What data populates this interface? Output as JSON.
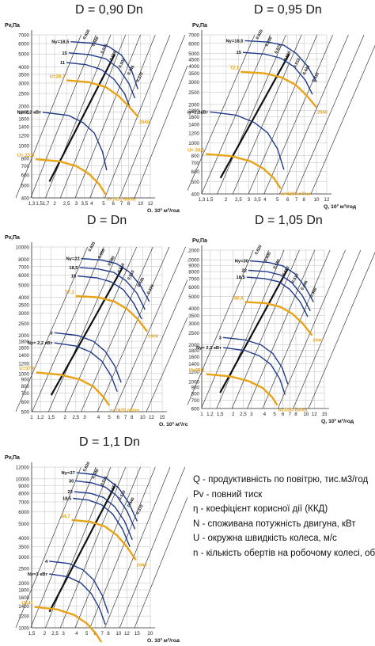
{
  "colors": {
    "operating_curve": "#e8a317",
    "blade_curve": "#1f3a8a",
    "efficiency_line": "#111111",
    "grid": "#bdbdbd"
  },
  "chart_data": [
    {
      "type": "line",
      "title": "D = 0,90 Dn",
      "ylabel": "Pv,Па",
      "xlabel": "Q, 10³ м³/год",
      "scale": "log-log",
      "xlim": [
        1.3,
        12
      ],
      "ylim": [
        400,
        7000
      ],
      "xticks": [
        "1,3",
        "1,5",
        "1,7",
        "2",
        "2,5",
        "3",
        "3,5",
        "4",
        "5",
        "6",
        "7",
        "8",
        "10",
        "12"
      ],
      "yticks": [
        "400",
        "500",
        "600",
        "700",
        "800",
        "1000",
        "1200",
        "1400",
        "1600",
        "1800",
        "2000",
        "2500",
        "3000",
        "3500",
        "4000",
        "5000",
        "6000",
        "7000"
      ],
      "efficiency_labels": [
        "0.620",
        "0.600",
        "0.575",
        "0.550",
        "0.500",
        "0.445",
        "0.370"
      ],
      "blade_power_labels": [
        "Ny=18,5",
        "15",
        "11",
        "Ny=2,2 кВт"
      ],
      "series": [
        {
          "name": "Ny=18,5",
          "x": [
            2.7,
            4.0,
            5.5,
            7.0,
            8.5,
            9.5
          ],
          "y": [
            6200,
            6050,
            5700,
            4900,
            3700,
            2700
          ]
        },
        {
          "name": "15",
          "x": [
            2.6,
            3.8,
            5.2,
            6.6,
            8.0,
            9.0
          ],
          "y": [
            5100,
            4950,
            4600,
            3900,
            3000,
            2300
          ]
        },
        {
          "name": "11",
          "x": [
            2.5,
            3.6,
            4.8,
            6.1,
            7.4,
            8.3
          ],
          "y": [
            4300,
            4150,
            3800,
            3200,
            2500,
            1900
          ]
        },
        {
          "name": "Ny=2,2 кВт",
          "x": [
            1.6,
            2.6,
            3.4,
            4.2,
            4.9,
            5.3
          ],
          "y": [
            1800,
            1700,
            1500,
            1250,
            900,
            650
          ]
        }
      ],
      "operating_curves": [
        {
          "label": "U=28,3",
          "end_label": "2940",
          "x": [
            2.5,
            3.8,
            5.2,
            6.6,
            8.0,
            9.6
          ],
          "y": [
            3150,
            3050,
            2800,
            2400,
            2000,
            1650
          ]
        },
        {
          "label": "U= 23,5",
          "end_label": "n=1420 об/хв",
          "x": [
            1.4,
            2.2,
            3.0,
            3.8,
            4.6,
            5.2
          ],
          "y": [
            790,
            760,
            700,
            610,
            510,
            425
          ]
        }
      ]
    },
    {
      "type": "line",
      "title": "D = 0,95 Dn",
      "ylabel": "Pv,Па",
      "xlabel": "Q, 10³ м³/год",
      "scale": "log-log",
      "xlim": [
        1.3,
        12
      ],
      "ylim": [
        400,
        7000
      ],
      "xticks": [
        "1,3",
        "1,5",
        "2",
        "2,5",
        "3",
        "3,5",
        "4",
        "5",
        "6",
        "7",
        "8",
        "10",
        "12"
      ],
      "yticks": [
        "400",
        "500",
        "600",
        "700",
        "800",
        "1000",
        "1200",
        "1400",
        "1600",
        "1800",
        "2000",
        "2500",
        "3000",
        "3500",
        "4000",
        "4500",
        "5000",
        "6000",
        "7000"
      ],
      "efficiency_labels": [
        "0.620",
        "0.600",
        "0.575",
        "0.550",
        "0.510",
        "0.445",
        "0.410"
      ],
      "blade_power_labels": [
        "Ny=18,5",
        "15",
        "Ny=2,2кВт"
      ],
      "series": [
        {
          "name": "Ny=18,5",
          "x": [
            2.8,
            4.2,
            5.6,
            7.0,
            8.5,
            10.0
          ],
          "y": [
            6300,
            6150,
            5800,
            5000,
            4000,
            3000
          ]
        },
        {
          "name": "15",
          "x": [
            2.7,
            4.0,
            5.3,
            6.7,
            8.2,
            9.3
          ],
          "y": [
            5100,
            4950,
            4600,
            3950,
            3100,
            2400
          ]
        },
        {
          "name": "Ny=2,2кВт",
          "x": [
            1.5,
            2.4,
            3.3,
            4.2,
            5.0,
            5.6
          ],
          "y": [
            1750,
            1650,
            1450,
            1200,
            900,
            620
          ]
        }
      ],
      "operating_curves": [
        {
          "label": "72,1",
          "end_label": "2940",
          "x": [
            2.6,
            4.0,
            5.4,
            6.9,
            8.4,
            10.0
          ],
          "y": [
            3600,
            3500,
            3250,
            2850,
            2350,
            1900
          ]
        },
        {
          "label": "U= 34,5",
          "end_label": "n=1388 об/хв",
          "x": [
            1.4,
            2.2,
            3.1,
            3.9,
            4.7,
            5.3
          ],
          "y": [
            820,
            790,
            720,
            630,
            530,
            440
          ]
        }
      ]
    },
    {
      "type": "line",
      "title": "D = Dn",
      "ylabel": "Pv,Па",
      "xlabel": "Q, 10³ м³/год",
      "scale": "log-log",
      "xlim": [
        1,
        15
      ],
      "ylim": [
        500,
        10000
      ],
      "xticks": [
        "1",
        "1,2",
        "1,5",
        "2",
        "2,5",
        "3",
        "4",
        "5",
        "6",
        "7",
        "8",
        "10",
        "12",
        "15"
      ],
      "yticks": [
        "500",
        "600",
        "700",
        "800",
        "900",
        "1000",
        "1200",
        "1400",
        "1600",
        "1800",
        "2000",
        "2500",
        "3000",
        "3500",
        "4000",
        "5000",
        "6000",
        "7000",
        "8000",
        "10000"
      ],
      "efficiency_labels": [
        "0.620",
        "0.600",
        "0.580",
        "0.550",
        "0.510",
        "0.445",
        "0.370"
      ],
      "blade_power_labels": [
        "Ny=22",
        "18,5",
        "15",
        "3",
        "Ny= 2,2 кВт"
      ],
      "series": [
        {
          "name": "Ny=22",
          "x": [
            2.8,
            4.2,
            5.8,
            7.5,
            9.5,
            11.5
          ],
          "y": [
            8100,
            7900,
            7400,
            6400,
            5000,
            3700
          ]
        },
        {
          "name": "18,5",
          "x": [
            2.7,
            4.0,
            5.5,
            7.1,
            8.9,
            10.5
          ],
          "y": [
            6900,
            6700,
            6300,
            5400,
            4300,
            3200
          ]
        },
        {
          "name": "15",
          "x": [
            2.6,
            3.9,
            5.2,
            6.7,
            8.3,
            9.8
          ],
          "y": [
            5900,
            5700,
            5300,
            4600,
            3600,
            2700
          ]
        },
        {
          "name": "3",
          "x": [
            1.6,
            2.6,
            3.6,
            4.6,
            5.6,
            6.4
          ],
          "y": [
            2100,
            2000,
            1800,
            1500,
            1150,
            850
          ]
        },
        {
          "name": "Ny= 2,2 кВт",
          "x": [
            1.6,
            2.5,
            3.4,
            4.3,
            5.2,
            5.9
          ],
          "y": [
            1750,
            1650,
            1480,
            1250,
            960,
            720
          ]
        }
      ],
      "operating_curves": [
        {
          "label": "77,3",
          "end_label": "2930",
          "x": [
            2.5,
            4.0,
            5.6,
            7.2,
            9.0,
            11.0
          ],
          "y": [
            4100,
            4000,
            3700,
            3250,
            2700,
            2150
          ]
        },
        {
          "label": "U=37,6",
          "end_label": "n=1425 об/хв",
          "x": [
            1.1,
            1.8,
            2.7,
            3.6,
            4.4,
            5.0
          ],
          "y": [
            1020,
            980,
            900,
            790,
            660,
            560
          ]
        }
      ]
    },
    {
      "type": "line",
      "title": "D = 1,05 Dn",
      "ylabel": "Pv,Па",
      "xlabel": "Q, 10³ м³/год",
      "scale": "log-log",
      "xlim": [
        1,
        15
      ],
      "ylim": [
        600,
        12000
      ],
      "xticks": [
        "1",
        "1,2",
        "1,5",
        "2",
        "2,5",
        "3",
        "4",
        "5",
        "6",
        "7",
        "8",
        "10",
        "12",
        "15"
      ],
      "yticks": [
        "600",
        "700",
        "800",
        "900",
        "1000",
        "1200",
        "1400",
        "1600",
        "1800",
        "2000",
        "2500",
        "3000",
        "3500",
        "4000",
        "5000",
        "6000",
        "7000",
        "8000",
        "9000",
        "10000",
        "12000"
      ],
      "efficiency_labels": [
        "0.620",
        "0.600",
        "0.580",
        "0.550",
        "0.510",
        "0.445",
        "0.400"
      ],
      "blade_power_labels": [
        "Ny=30",
        "22",
        "18,5",
        "3",
        "Ny= 2,2 кВт"
      ],
      "series": [
        {
          "name": "Ny=30",
          "x": [
            2.9,
            4.4,
            6.0,
            7.8,
            9.8,
            11.8
          ],
          "y": [
            9800,
            9500,
            8900,
            7700,
            6000,
            4500
          ]
        },
        {
          "name": "22",
          "x": [
            2.8,
            4.2,
            5.7,
            7.3,
            9.2,
            11.0
          ],
          "y": [
            8200,
            8000,
            7500,
            6500,
            5100,
            3800
          ]
        },
        {
          "name": "18,5",
          "x": [
            2.7,
            4.0,
            5.5,
            7.0,
            8.8,
            10.4
          ],
          "y": [
            7200,
            7000,
            6600,
            5700,
            4500,
            3400
          ]
        },
        {
          "name": "3",
          "x": [
            1.6,
            2.6,
            3.7,
            4.8,
            5.9,
            6.7
          ],
          "y": [
            2300,
            2200,
            2000,
            1700,
            1300,
            950
          ]
        },
        {
          "name": "Ny= 2,2 кВт",
          "x": [
            1.6,
            2.6,
            3.6,
            4.6,
            5.6,
            6.3
          ],
          "y": [
            1900,
            1800,
            1620,
            1380,
            1050,
            780
          ]
        }
      ],
      "operating_curves": [
        {
          "label": "80,6",
          "end_label": "2940",
          "x": [
            2.6,
            4.1,
            5.7,
            7.4,
            9.3,
            11.4
          ],
          "y": [
            4500,
            4400,
            4100,
            3600,
            3000,
            2400
          ]
        },
        {
          "label": "U=39,2",
          "end_label": "n=1393 об/хв",
          "x": [
            1.1,
            1.9,
            2.8,
            3.8,
            4.7,
            5.3
          ],
          "y": [
            1150,
            1100,
            1010,
            890,
            750,
            640
          ]
        }
      ]
    },
    {
      "type": "line",
      "title": "D = 1,1 Dn",
      "ylabel": "Pv,Па",
      "xlabel": "Q, 10³ м³/год",
      "scale": "log-log",
      "xlim": [
        1.5,
        20
      ],
      "ylim": [
        1000,
        12000
      ],
      "xticks": [
        "1,5",
        "2",
        "2,5",
        "3",
        "4",
        "5",
        "6",
        "7",
        "8",
        "10",
        "12",
        "15",
        "20"
      ],
      "yticks": [
        "1000",
        "1200",
        "1400",
        "1600",
        "1800",
        "2000",
        "2500",
        "3000",
        "3500",
        "4000",
        "5000",
        "6000",
        "7000",
        "8000",
        "9000",
        "10000",
        "12000"
      ],
      "efficiency_labels": [
        "0.620",
        "0.600",
        "0.575",
        "0.550",
        "0.510",
        "0.440",
        "0.370"
      ],
      "blade_power_labels": [
        "Ny=37",
        "30",
        "22",
        "18,5",
        "4",
        "Ny=3 кВт"
      ],
      "series": [
        {
          "name": "Ny=37",
          "x": [
            4.0,
            5.8,
            7.8,
            10.0,
            12.5,
            15.0
          ],
          "y": [
            11000,
            10700,
            10000,
            8700,
            6900,
            5200
          ]
        },
        {
          "name": "30",
          "x": [
            3.9,
            5.6,
            7.5,
            9.6,
            12.0,
            14.3
          ],
          "y": [
            9700,
            9400,
            8800,
            7700,
            6100,
            4600
          ]
        },
        {
          "name": "22",
          "x": [
            3.8,
            5.4,
            7.2,
            9.2,
            11.4,
            13.5
          ],
          "y": [
            8200,
            8000,
            7500,
            6500,
            5200,
            3900
          ]
        },
        {
          "name": "18,5",
          "x": [
            3.7,
            5.2,
            6.9,
            8.8,
            10.9,
            12.8
          ],
          "y": [
            7400,
            7200,
            6700,
            5800,
            4600,
            3500
          ]
        },
        {
          "name": "4",
          "x": [
            2.2,
            3.4,
            4.6,
            5.8,
            7.0,
            8.0
          ],
          "y": [
            2800,
            2700,
            2450,
            2100,
            1650,
            1250
          ]
        },
        {
          "name": "Ny=3 кВт",
          "x": [
            2.2,
            3.3,
            4.4,
            5.5,
            6.6,
            7.5
          ],
          "y": [
            2300,
            2200,
            2000,
            1700,
            1350,
            1050
          ]
        }
      ],
      "operating_curves": [
        {
          "label": "84,7",
          "end_label": "2940",
          "x": [
            3.6,
            5.4,
            7.4,
            9.6,
            12.0,
            14.6
          ],
          "y": [
            5300,
            5150,
            4800,
            4200,
            3500,
            2850
          ]
        },
        {
          "label": "U=41",
          "end_label": "n=1425 об/хв",
          "x": [
            1.6,
            2.6,
            3.8,
            5.0,
            6.2,
            7.1
          ],
          "y": [
            1380,
            1330,
            1220,
            1070,
            900,
            770
          ]
        }
      ]
    }
  ],
  "legend": [
    "Q - продуктивність по повітрю, тис.м3/год",
    "Pv - повний тиск",
    "η - коефіцієнт корисної дії (ККД)",
    "N - споживана потужність двигуна, кВт",
    "U - окружна швидкість колеса, м/с",
    "n - кількість обертів на робочому колесі, об/хв"
  ]
}
